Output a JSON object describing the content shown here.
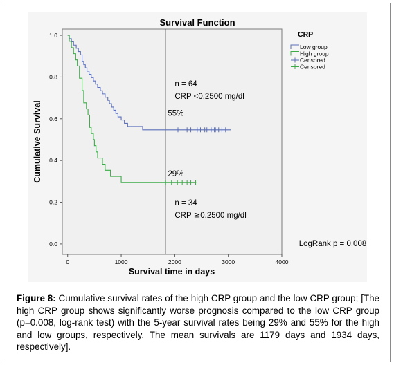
{
  "chart_data": {
    "type": "line",
    "title": "Survival Function",
    "xlabel": "Survival time in days",
    "ylabel": "Cumulative Survival",
    "xlim": [
      -100,
      4000
    ],
    "ylim": [
      -0.05,
      1.03
    ],
    "xticks": [
      "0",
      "1000",
      "2000",
      "3000",
      "4000"
    ],
    "xtick_values": [
      0,
      1000,
      2000,
      3000,
      4000
    ],
    "yticks": [
      "0.0",
      "0.2",
      "0.4",
      "0.6",
      "0.8",
      "1.0"
    ],
    "ytick_values": [
      0.0,
      0.2,
      0.4,
      0.6,
      0.8,
      1.0
    ],
    "grid": false,
    "reference_line_x": 1825,
    "legend": {
      "title": "CRP",
      "position": "top-right",
      "entries": [
        {
          "label": "Low group",
          "color": "#5b6fb8",
          "kind": "step"
        },
        {
          "label": "High group",
          "color": "#3daa48",
          "kind": "step"
        },
        {
          "label": "Censored",
          "color": "#5b6fb8",
          "kind": "censor"
        },
        {
          "label": "Censored",
          "color": "#3daa48",
          "kind": "censor"
        }
      ]
    },
    "series": [
      {
        "name": "Low group",
        "color": "#5b6fb8",
        "steps": [
          [
            0,
            1.0
          ],
          [
            30,
            0.984
          ],
          [
            70,
            0.969
          ],
          [
            110,
            0.953
          ],
          [
            160,
            0.938
          ],
          [
            200,
            0.922
          ],
          [
            240,
            0.906
          ],
          [
            270,
            0.875
          ],
          [
            300,
            0.859
          ],
          [
            330,
            0.844
          ],
          [
            360,
            0.828
          ],
          [
            400,
            0.813
          ],
          [
            440,
            0.797
          ],
          [
            480,
            0.781
          ],
          [
            520,
            0.766
          ],
          [
            560,
            0.75
          ],
          [
            610,
            0.734
          ],
          [
            650,
            0.719
          ],
          [
            700,
            0.703
          ],
          [
            750,
            0.688
          ],
          [
            780,
            0.672
          ],
          [
            820,
            0.656
          ],
          [
            860,
            0.641
          ],
          [
            900,
            0.625
          ],
          [
            940,
            0.609
          ],
          [
            1000,
            0.594
          ],
          [
            1060,
            0.578
          ],
          [
            1120,
            0.563
          ],
          [
            1400,
            0.547
          ],
          [
            1800,
            0.547
          ],
          [
            2230,
            0.547
          ],
          [
            2600,
            0.547
          ],
          [
            3050,
            0.547
          ]
        ],
        "censored_x": [
          2060,
          2230,
          2300,
          2420,
          2480,
          2560,
          2600,
          2680,
          2740,
          2760,
          2820,
          2880,
          2950
        ],
        "censored_y": 0.547
      },
      {
        "name": "High group",
        "color": "#3daa48",
        "steps": [
          [
            0,
            1.0
          ],
          [
            30,
            0.971
          ],
          [
            70,
            0.941
          ],
          [
            110,
            0.912
          ],
          [
            150,
            0.882
          ],
          [
            180,
            0.853
          ],
          [
            220,
            0.794
          ],
          [
            270,
            0.735
          ],
          [
            300,
            0.676
          ],
          [
            350,
            0.647
          ],
          [
            380,
            0.618
          ],
          [
            410,
            0.559
          ],
          [
            440,
            0.529
          ],
          [
            480,
            0.5
          ],
          [
            500,
            0.471
          ],
          [
            530,
            0.441
          ],
          [
            560,
            0.412
          ],
          [
            650,
            0.382
          ],
          [
            700,
            0.353
          ],
          [
            800,
            0.324
          ],
          [
            1000,
            0.294
          ],
          [
            1830,
            0.294
          ],
          [
            2400,
            0.294
          ]
        ],
        "censored_x": [
          1830,
          1940,
          2050,
          2140,
          2230,
          2300,
          2390
        ],
        "censored_y": 0.294
      }
    ],
    "annotations": [
      {
        "text": "n = 64",
        "x": 2000,
        "y": 0.755
      },
      {
        "text": "CRP  <0.2500 mg/dl",
        "x": 2000,
        "y": 0.695
      },
      {
        "text": "55%",
        "x": 1870,
        "y": 0.615
      },
      {
        "text": "29%",
        "x": 1870,
        "y": 0.325
      },
      {
        "text": "n = 34",
        "x": 2000,
        "y": 0.185
      },
      {
        "text": "CRP  ≧0.2500 mg/dl",
        "x": 2000,
        "y": 0.125
      },
      {
        "text": "LogRank p = 0.008",
        "x": 4320,
        "y": -0.01
      }
    ]
  },
  "caption": {
    "label": "Figure 8:",
    "text": " Cumulative survival rates of the high CRP group and the low CRP group; [The high CRP group shows significantly worse prognosis compared to the low CRP group (p=0.008, log-rank test) with the 5-year survival rates being 29% and 55% for the high and low groups, respectively. The mean survivals are 1179 days and 1934 days, respectively]."
  }
}
